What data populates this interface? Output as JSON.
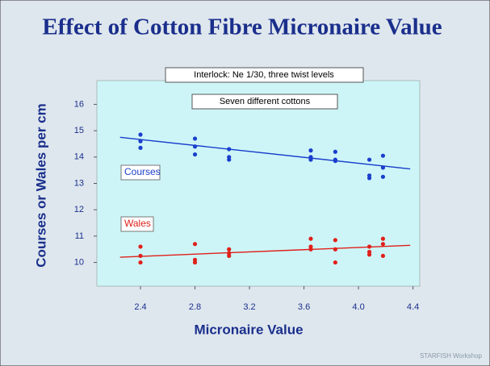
{
  "chart_data": {
    "type": "scatter",
    "title": "Effect of Cotton Fibre Micronaire Value",
    "annotations": [
      "Interlock: Ne 1/30, three twist levels",
      "Seven different cottons"
    ],
    "footer": "STARFISH Workshop",
    "x_label": "Micronaire Value",
    "y_label": "Courses or Wales per cm",
    "xlim": [
      2.08,
      4.45
    ],
    "ylim": [
      9.1,
      16.9
    ],
    "xticks": [
      2.4,
      2.8,
      3.2,
      3.6,
      {
        "value": 4.0,
        "label": "4.0"
      },
      4.4
    ],
    "yticks": [
      10,
      11,
      12,
      13,
      14,
      15,
      16
    ],
    "series": [
      {
        "name": "Courses",
        "color": "#1a3fcc",
        "x": [
          2.4,
          2.4,
          2.4,
          2.8,
          2.8,
          2.8,
          3.05,
          3.05,
          3.05,
          3.65,
          3.65,
          3.65,
          3.83,
          3.83,
          3.83,
          4.08,
          4.08,
          4.08,
          4.18,
          4.18,
          4.18
        ],
        "values": [
          14.85,
          14.6,
          14.35,
          14.7,
          14.4,
          14.1,
          14.3,
          14.0,
          13.9,
          14.25,
          14.0,
          13.9,
          14.2,
          13.9,
          13.85,
          13.9,
          13.3,
          13.2,
          14.05,
          13.6,
          13.25
        ],
        "trend": {
          "x": [
            2.25,
            4.38
          ],
          "values": [
            14.75,
            13.55
          ]
        }
      },
      {
        "name": "Wales",
        "color": "#e0201a",
        "x": [
          2.4,
          2.4,
          2.4,
          2.8,
          2.8,
          2.8,
          3.05,
          3.05,
          3.05,
          3.65,
          3.65,
          3.65,
          3.83,
          3.83,
          3.83,
          4.08,
          4.08,
          4.08,
          4.18,
          4.18,
          4.18
        ],
        "values": [
          10.6,
          10.25,
          10.0,
          10.7,
          10.1,
          10.0,
          10.5,
          10.35,
          10.25,
          10.9,
          10.6,
          10.5,
          10.85,
          10.5,
          10.0,
          10.6,
          10.4,
          10.3,
          10.9,
          10.7,
          10.25
        ],
        "trend": {
          "x": [
            2.25,
            4.38
          ],
          "values": [
            10.2,
            10.65
          ]
        }
      }
    ]
  }
}
